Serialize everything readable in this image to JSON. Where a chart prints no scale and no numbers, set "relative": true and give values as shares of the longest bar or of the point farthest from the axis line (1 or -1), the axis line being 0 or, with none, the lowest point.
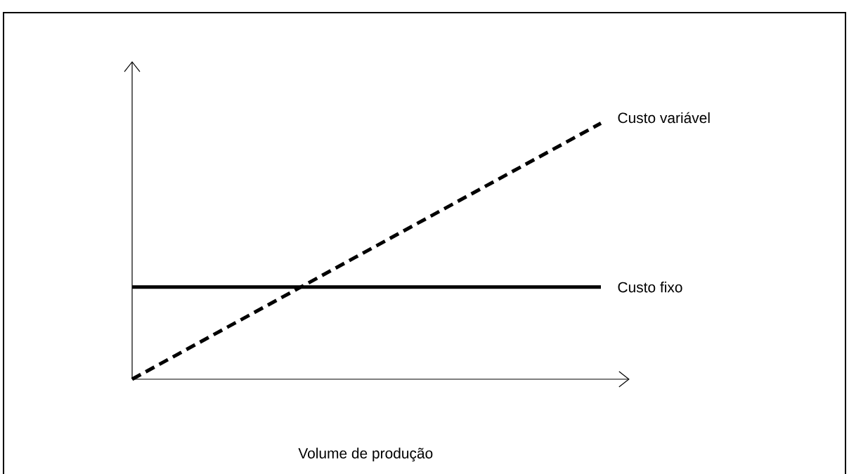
{
  "chart_data": {
    "type": "line",
    "relative": true,
    "xlabel": "Volume de produção",
    "categories": [
      null,
      null
    ],
    "series": [
      {
        "name": "Custo variável",
        "color": "#000000",
        "line_style": "dashed",
        "values": [
          0,
          1
        ]
      },
      {
        "name": "Custo fixo",
        "color": "#000000",
        "line_style": "solid",
        "values": [
          0.36,
          0.36
        ]
      }
    ]
  }
}
